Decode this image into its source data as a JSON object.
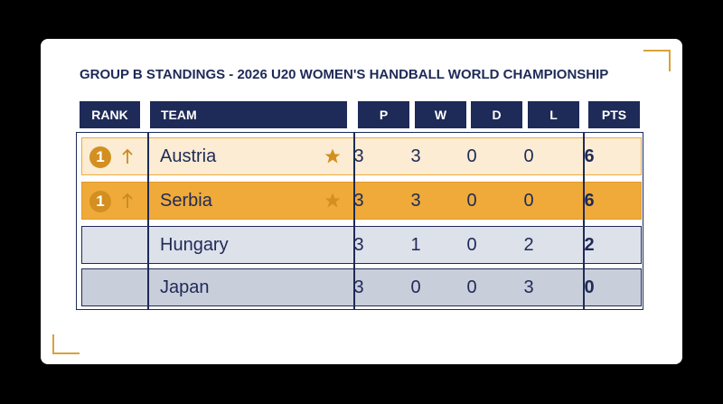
{
  "title": "GROUP B STANDINGS - 2026 U20 WOMEN'S HANDBALL WORLD CHAMPIONSHIP",
  "header": {
    "rank": "RANK",
    "team": "TEAM",
    "p": "P",
    "w": "W",
    "d": "D",
    "l": "L",
    "pts": "PTS"
  },
  "rows": [
    {
      "rank": 1,
      "team": "Austria",
      "p": 3,
      "w": 3,
      "d": 0,
      "l": 0,
      "pts": 6
    },
    {
      "rank": 1,
      "team": "Serbia",
      "p": 3,
      "w": 3,
      "d": 0,
      "l": 0,
      "pts": 6
    },
    {
      "team": "Hungary",
      "p": 3,
      "w": 1,
      "d": 0,
      "l": 2,
      "pts": 2
    },
    {
      "team": "Japan",
      "p": 3,
      "w": 0,
      "d": 0,
      "l": 3,
      "pts": 0
    }
  ]
}
